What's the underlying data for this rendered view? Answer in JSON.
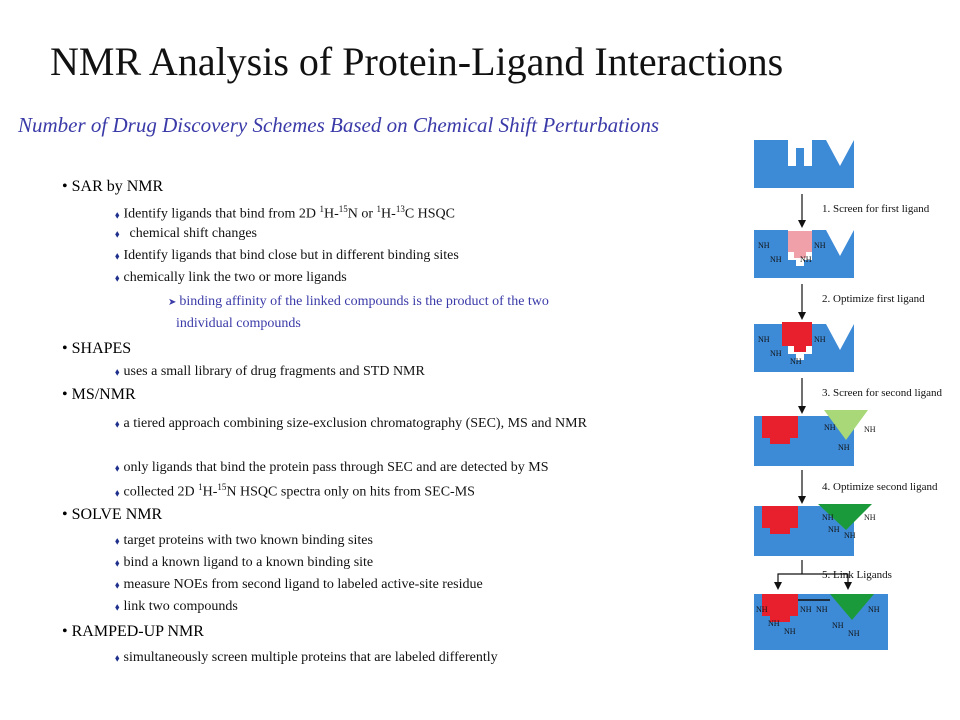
{
  "title": "NMR Analysis of Protein-Ligand Interactions",
  "subtitle": "Number of Drug Discovery Schemes Based on Chemical Shift Perturbations",
  "sections": [
    {
      "heading": "SAR by NMR"
    },
    {
      "heading": "SHAPES"
    },
    {
      "heading": "MS/NMR"
    },
    {
      "heading": "SOLVE NMR"
    },
    {
      "heading": "RAMPED-UP NMR"
    }
  ],
  "items": {
    "sar_1a": "Identify ligands that bind from 2D ",
    "sar_1b": "H-",
    "sar_1c": "N or ",
    "sar_1d": "H-",
    "sar_1e": "C HSQC",
    "sup_1": "1",
    "sup_15": "15",
    "sup_13": "13",
    "sar_2": "chemical shift changes",
    "sar_3": "Identify ligands that bind close but in different binding sites",
    "sar_4": "chemically link the two or more ligands",
    "sar_4a": "binding affinity of the linked compounds is the product of the two",
    "sar_4b": "individual compounds",
    "shapes_1": "uses a small library of drug fragments and STD NMR",
    "ms_1": "a tiered approach combining size-exclusion chromatography (SEC), MS and NMR",
    "ms_2": "only ligands that bind the protein pass through SEC and are detected by MS",
    "ms_3a": "collected 2D ",
    "ms_3b": "H-",
    "ms_3c": "N HSQC spectra only on hits from SEC-MS",
    "solve_1": "target proteins with two known binding sites",
    "solve_2": "bind a known ligand to a known binding site",
    "solve_3": "measure NOEs from second ligand to labeled active-site residue",
    "solve_4": "link two compounds",
    "ramped_1": "simultaneously screen multiple proteins that are labeled differently"
  },
  "bullet_symbol": "⬧",
  "arrow_symbol": "➤",
  "diagram": {
    "steps": [
      "1. Screen for first ligand",
      "2. Optimize first ligand",
      "3. Screen for second ligand",
      "4. Optimize second ligand",
      "5. Link Ligands"
    ],
    "nh_label": "NH",
    "colors": {
      "protein": "#3d8ad6",
      "ligand1_screen": "#f0a0a8",
      "ligand1": "#e8202e",
      "ligand2_screen": "#a8d878",
      "ligand2": "#1a9a3a"
    }
  }
}
